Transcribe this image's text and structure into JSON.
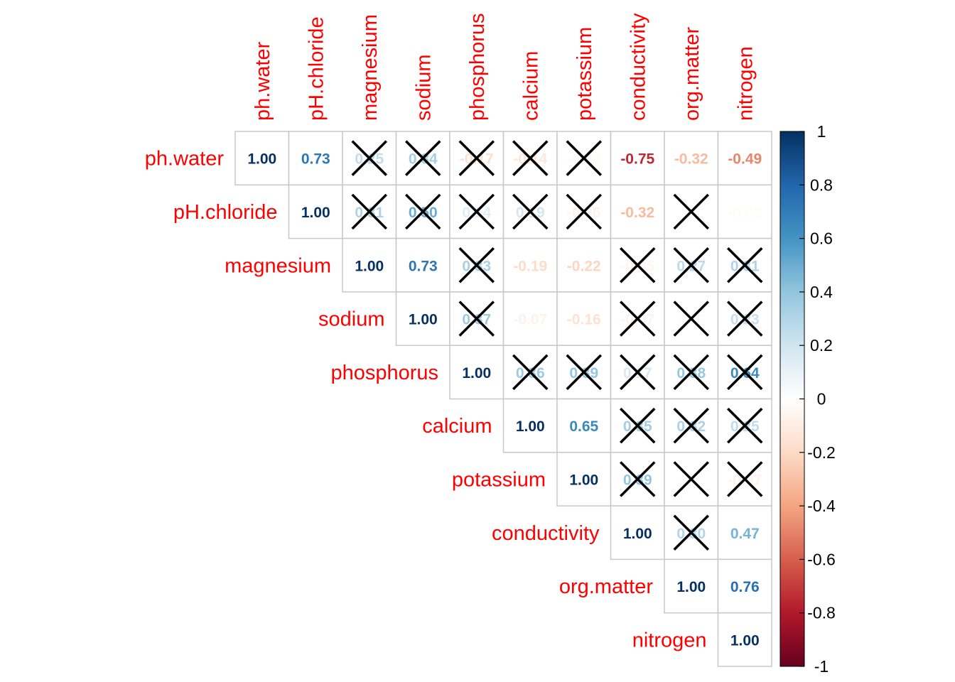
{
  "chart_data": {
    "type": "heatmap",
    "title": "",
    "variables": [
      "ph.water",
      "pH.chloride",
      "magnesium",
      "sodium",
      "phosphorus",
      "calcium",
      "potassium",
      "conductivity",
      "org.matter",
      "nitrogen"
    ],
    "matrix": [
      [
        1.0,
        0.73,
        0.25,
        0.34,
        -0.17,
        -0.14,
        -0.03,
        -0.75,
        -0.32,
        -0.49
      ],
      [
        null,
        1.0,
        0.31,
        0.5,
        0.14,
        0.19,
        -0.06,
        -0.32,
        0.0,
        -0.02
      ],
      [
        null,
        null,
        1.0,
        0.73,
        0.33,
        -0.19,
        -0.22,
        -0.05,
        0.27,
        0.31
      ],
      [
        null,
        null,
        null,
        1.0,
        0.37,
        -0.07,
        -0.16,
        -0.07,
        0.02,
        0.23
      ],
      [
        null,
        null,
        null,
        null,
        1.0,
        0.36,
        0.39,
        0.17,
        0.38,
        0.64
      ],
      [
        null,
        null,
        null,
        null,
        null,
        1.0,
        0.65,
        0.35,
        0.32,
        0.25
      ],
      [
        null,
        null,
        null,
        null,
        null,
        null,
        1.0,
        0.39,
        0.01,
        -0.07
      ],
      [
        null,
        null,
        null,
        null,
        null,
        null,
        null,
        1.0,
        0.3,
        0.47
      ],
      [
        null,
        null,
        null,
        null,
        null,
        null,
        null,
        null,
        1.0,
        0.76
      ],
      [
        null,
        null,
        null,
        null,
        null,
        null,
        null,
        null,
        null,
        1.0
      ]
    ],
    "insignificant": [
      [
        0,
        2
      ],
      [
        0,
        3
      ],
      [
        0,
        4
      ],
      [
        0,
        5
      ],
      [
        0,
        6
      ],
      [
        1,
        2
      ],
      [
        1,
        3
      ],
      [
        1,
        4
      ],
      [
        1,
        5
      ],
      [
        1,
        6
      ],
      [
        1,
        8
      ],
      [
        2,
        4
      ],
      [
        2,
        7
      ],
      [
        2,
        8
      ],
      [
        2,
        9
      ],
      [
        3,
        4
      ],
      [
        3,
        7
      ],
      [
        3,
        8
      ],
      [
        3,
        9
      ],
      [
        4,
        5
      ],
      [
        4,
        6
      ],
      [
        4,
        7
      ],
      [
        4,
        8
      ],
      [
        4,
        9
      ],
      [
        5,
        7
      ],
      [
        5,
        8
      ],
      [
        5,
        9
      ],
      [
        6,
        7
      ],
      [
        6,
        8
      ],
      [
        6,
        9
      ],
      [
        7,
        8
      ]
    ],
    "color_scale": {
      "range": [
        -1,
        1
      ],
      "ticks": [
        "1",
        "0.8",
        "0.6",
        "0.4",
        "0.2",
        "0",
        "-0.2",
        "-0.4",
        "-0.6",
        "-0.8",
        "-1"
      ],
      "stops": [
        "#67001F",
        "#B2182B",
        "#D6604D",
        "#F4A582",
        "#FDDBC7",
        "#FFFFFF",
        "#D1E5F0",
        "#92C5DE",
        "#4393C3",
        "#2166AC",
        "#053061"
      ]
    },
    "label_color": "#FF0000",
    "cross_color": "#000000",
    "layout": "upper-triangle",
    "legend": "right"
  }
}
